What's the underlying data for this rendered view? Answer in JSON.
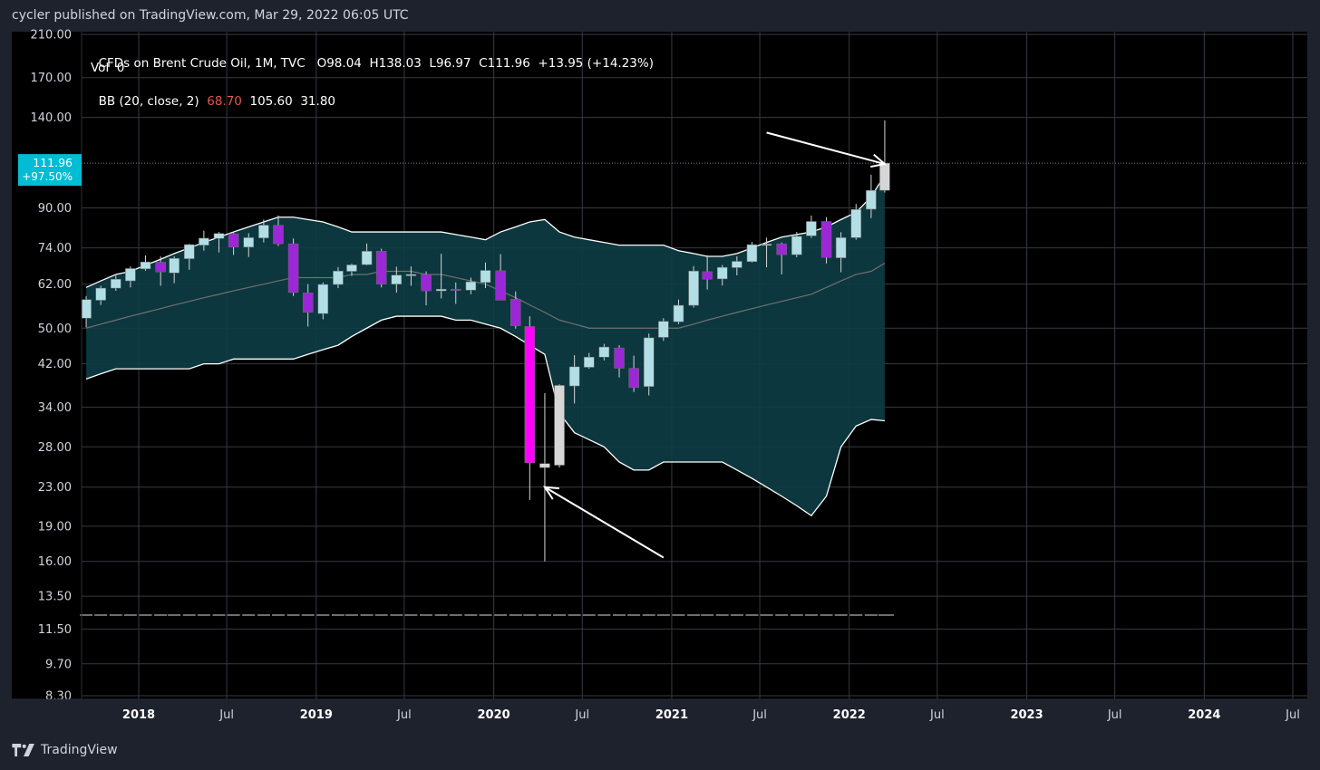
{
  "header": {
    "published": "cycler published on TradingView.com, Mar 29, 2022 06:05 UTC"
  },
  "brand": {
    "name": "TradingView"
  },
  "legend": {
    "title": "CFDs on Brent Crude Oil, 1M, TVC",
    "ohlc": "O98.04  H138.03  L96.97  C111.96  +13.95 (+14.23%)",
    "vol": "Vol  0",
    "bb_label": "BB (20, close, 2)",
    "bb_basis": "68.70",
    "bb_upper": "105.60",
    "bb_lower": "31.80"
  },
  "price_tag": {
    "value": "111.96",
    "pct": "+97.50%"
  },
  "colors": {
    "background": "#000000",
    "frame": "#1e222d",
    "grid": "#363a45",
    "band_fill": "#0d3d45",
    "band_line": "#ffffff",
    "basis_line": "#707070",
    "up_candle": "#b2dfe6",
    "down_candle": "#9c27d6",
    "tag_bg": "#00bcd4",
    "price_line": "#787b86"
  },
  "chart_data": {
    "type": "candlestick",
    "title": "CFDs on Brent Crude Oil, 1M, TVC",
    "scale": "log",
    "ylim": [
      8.3,
      210
    ],
    "y_ticks": [
      "210.00",
      "170.00",
      "140.00",
      "111.96",
      "90.00",
      "74.00",
      "62.00",
      "50.00",
      "42.00",
      "34.00",
      "28.00",
      "23.00",
      "19.00",
      "16.00",
      "13.50",
      "11.50",
      "9.70",
      "8.30"
    ],
    "x_ticks": [
      "2018",
      "Jul",
      "2019",
      "Jul",
      "2020",
      "Jul",
      "2021",
      "Jul",
      "2022",
      "Jul",
      "2023",
      "Jul",
      "2024",
      "Jul"
    ],
    "candles": [
      {
        "d": "2017-09",
        "o": 52.5,
        "h": 58.5,
        "l": 50.2,
        "c": 57.5
      },
      {
        "d": "2017-10",
        "o": 57.3,
        "h": 61.5,
        "l": 56.0,
        "c": 60.8
      },
      {
        "d": "2017-11",
        "o": 60.8,
        "h": 64.6,
        "l": 60.0,
        "c": 63.5
      },
      {
        "d": "2017-12",
        "o": 63.0,
        "h": 67.6,
        "l": 61.0,
        "c": 66.9
      },
      {
        "d": "2018-01",
        "o": 66.8,
        "h": 71.3,
        "l": 66.2,
        "c": 69.1
      },
      {
        "d": "2018-02",
        "o": 69.0,
        "h": 71.0,
        "l": 61.5,
        "c": 65.8
      },
      {
        "d": "2018-03",
        "o": 65.5,
        "h": 71.0,
        "l": 62.3,
        "c": 70.3
      },
      {
        "d": "2018-04",
        "o": 70.2,
        "h": 75.5,
        "l": 66.5,
        "c": 75.2
      },
      {
        "d": "2018-05",
        "o": 75.0,
        "h": 80.5,
        "l": 73.0,
        "c": 77.6
      },
      {
        "d": "2018-06",
        "o": 77.5,
        "h": 80.0,
        "l": 72.4,
        "c": 79.4
      },
      {
        "d": "2018-07",
        "o": 79.3,
        "h": 80.0,
        "l": 71.5,
        "c": 74.3
      },
      {
        "d": "2018-08",
        "o": 74.3,
        "h": 79.5,
        "l": 70.8,
        "c": 77.8
      },
      {
        "d": "2018-09",
        "o": 77.7,
        "h": 85.0,
        "l": 76.0,
        "c": 82.7
      },
      {
        "d": "2018-10",
        "o": 82.7,
        "h": 86.7,
        "l": 74.7,
        "c": 75.5
      },
      {
        "d": "2018-11",
        "o": 75.5,
        "h": 77.5,
        "l": 58.5,
        "c": 59.5
      },
      {
        "d": "2018-12",
        "o": 59.4,
        "h": 62.0,
        "l": 50.4,
        "c": 54.0
      },
      {
        "d": "2019-01",
        "o": 53.7,
        "h": 62.5,
        "l": 52.2,
        "c": 61.9
      },
      {
        "d": "2019-02",
        "o": 61.9,
        "h": 67.4,
        "l": 60.8,
        "c": 66.1
      },
      {
        "d": "2019-03",
        "o": 66.0,
        "h": 68.5,
        "l": 64.5,
        "c": 68.1
      },
      {
        "d": "2019-04",
        "o": 68.2,
        "h": 75.6,
        "l": 68.0,
        "c": 72.8
      },
      {
        "d": "2019-05",
        "o": 72.8,
        "h": 73.7,
        "l": 61.0,
        "c": 62.0
      },
      {
        "d": "2019-06",
        "o": 62.0,
        "h": 67.5,
        "l": 59.5,
        "c": 64.8
      },
      {
        "d": "2019-07",
        "o": 64.8,
        "h": 67.6,
        "l": 61.5,
        "c": 65.0
      },
      {
        "d": "2019-08",
        "o": 65.0,
        "h": 66.0,
        "l": 55.9,
        "c": 60.0
      },
      {
        "d": "2019-09",
        "o": 60.0,
        "h": 71.9,
        "l": 57.8,
        "c": 60.5
      },
      {
        "d": "2019-10",
        "o": 60.5,
        "h": 62.5,
        "l": 56.3,
        "c": 60.2
      },
      {
        "d": "2019-11",
        "o": 60.2,
        "h": 64.0,
        "l": 59.0,
        "c": 62.7
      },
      {
        "d": "2019-12",
        "o": 62.5,
        "h": 68.9,
        "l": 60.8,
        "c": 66.3
      },
      {
        "d": "2020-01",
        "o": 66.2,
        "h": 71.8,
        "l": 57.5,
        "c": 57.3
      },
      {
        "d": "2020-02",
        "o": 57.6,
        "h": 59.8,
        "l": 49.9,
        "c": 50.6
      },
      {
        "d": "2020-03",
        "o": 50.4,
        "h": 53.0,
        "l": 21.6,
        "c": 25.9
      },
      {
        "d": "2020-04",
        "o": 25.8,
        "h": 36.4,
        "l": 16.0,
        "c": 25.3
      },
      {
        "d": "2020-05",
        "o": 25.6,
        "h": 38.0,
        "l": 25.3,
        "c": 37.8
      },
      {
        "d": "2020-06",
        "o": 37.7,
        "h": 43.8,
        "l": 34.6,
        "c": 41.4
      },
      {
        "d": "2020-07",
        "o": 41.3,
        "h": 44.3,
        "l": 41.0,
        "c": 43.4
      },
      {
        "d": "2020-08",
        "o": 43.4,
        "h": 46.3,
        "l": 42.7,
        "c": 45.6
      },
      {
        "d": "2020-09",
        "o": 45.4,
        "h": 46.0,
        "l": 39.3,
        "c": 41.1
      },
      {
        "d": "2020-10",
        "o": 41.1,
        "h": 43.7,
        "l": 36.6,
        "c": 37.4
      },
      {
        "d": "2020-11",
        "o": 37.6,
        "h": 48.7,
        "l": 36.0,
        "c": 47.7
      },
      {
        "d": "2020-12",
        "o": 47.8,
        "h": 52.5,
        "l": 47.0,
        "c": 51.7
      },
      {
        "d": "2021-01",
        "o": 51.6,
        "h": 57.5,
        "l": 51.0,
        "c": 55.9
      },
      {
        "d": "2021-02",
        "o": 55.9,
        "h": 67.7,
        "l": 55.3,
        "c": 66.1
      },
      {
        "d": "2021-03",
        "o": 65.9,
        "h": 71.4,
        "l": 60.4,
        "c": 63.5
      },
      {
        "d": "2021-04",
        "o": 63.6,
        "h": 68.1,
        "l": 61.6,
        "c": 67.3
      },
      {
        "d": "2021-05",
        "o": 67.2,
        "h": 71.0,
        "l": 64.7,
        "c": 69.3
      },
      {
        "d": "2021-06",
        "o": 69.2,
        "h": 76.2,
        "l": 68.9,
        "c": 75.2
      },
      {
        "d": "2021-07",
        "o": 75.0,
        "h": 77.8,
        "l": 67.3,
        "c": 75.4
      },
      {
        "d": "2021-08",
        "o": 75.5,
        "h": 76.0,
        "l": 65.0,
        "c": 71.6
      },
      {
        "d": "2021-09",
        "o": 71.6,
        "h": 80.0,
        "l": 70.7,
        "c": 78.3
      },
      {
        "d": "2021-10",
        "o": 78.5,
        "h": 86.7,
        "l": 77.7,
        "c": 84.2
      },
      {
        "d": "2021-11",
        "o": 84.2,
        "h": 86.0,
        "l": 68.6,
        "c": 70.6
      },
      {
        "d": "2021-12",
        "o": 70.5,
        "h": 79.9,
        "l": 65.7,
        "c": 77.8
      },
      {
        "d": "2022-01",
        "o": 77.8,
        "h": 91.7,
        "l": 77.0,
        "c": 89.3
      },
      {
        "d": "2022-02",
        "o": 89.4,
        "h": 105.8,
        "l": 85.6,
        "c": 98.0
      },
      {
        "d": "2022-03",
        "o": 98.04,
        "h": 138.03,
        "l": 96.97,
        "c": 111.96
      }
    ],
    "bollinger": {
      "period": 20,
      "source": "close",
      "mult": 2,
      "start": "2017-09",
      "upper": [
        61,
        63,
        65,
        66,
        68,
        70,
        72,
        74,
        76,
        78,
        80,
        82,
        84,
        86,
        86,
        85,
        84,
        82,
        80,
        80,
        80,
        80,
        80,
        80,
        80,
        79,
        78,
        77,
        80,
        82,
        84,
        85,
        80,
        78,
        77,
        76,
        75,
        75,
        75,
        75,
        73,
        72,
        71,
        71,
        72,
        74,
        76,
        78,
        79,
        80,
        82,
        85,
        88,
        95,
        105.6
      ],
      "basis": [
        50,
        51,
        52,
        53,
        54,
        55,
        56,
        57,
        58,
        59,
        60,
        61,
        62,
        63,
        64,
        64,
        64,
        64,
        65,
        65,
        66,
        66,
        66,
        65,
        65,
        64,
        63,
        62,
        60,
        58,
        56,
        54,
        52,
        51,
        50,
        50,
        50,
        50,
        50,
        50,
        50,
        51,
        52,
        53,
        54,
        55,
        56,
        57,
        58,
        59,
        61,
        63,
        65,
        66,
        68.7
      ],
      "lower": [
        39,
        40,
        41,
        41,
        41,
        41,
        41,
        41,
        42,
        42,
        43,
        43,
        43,
        43,
        43,
        44,
        45,
        46,
        48,
        50,
        52,
        53,
        53,
        53,
        53,
        52,
        52,
        51,
        50,
        48,
        46,
        44,
        33,
        30,
        29,
        28,
        26,
        25,
        25,
        26,
        26,
        26,
        26,
        26,
        25,
        24,
        23,
        22,
        21,
        20,
        22,
        28,
        31,
        32,
        31.8
      ]
    },
    "annotations": [
      {
        "type": "arrow",
        "from": {
          "d": "2021-07",
          "p": 130
        },
        "to": {
          "d": "2022-03",
          "p": 111.5
        }
      },
      {
        "type": "arrow",
        "from": {
          "d": "2020-12",
          "p": 16.3
        },
        "to": {
          "d": "2020-04",
          "p": 23.0
        }
      }
    ]
  }
}
